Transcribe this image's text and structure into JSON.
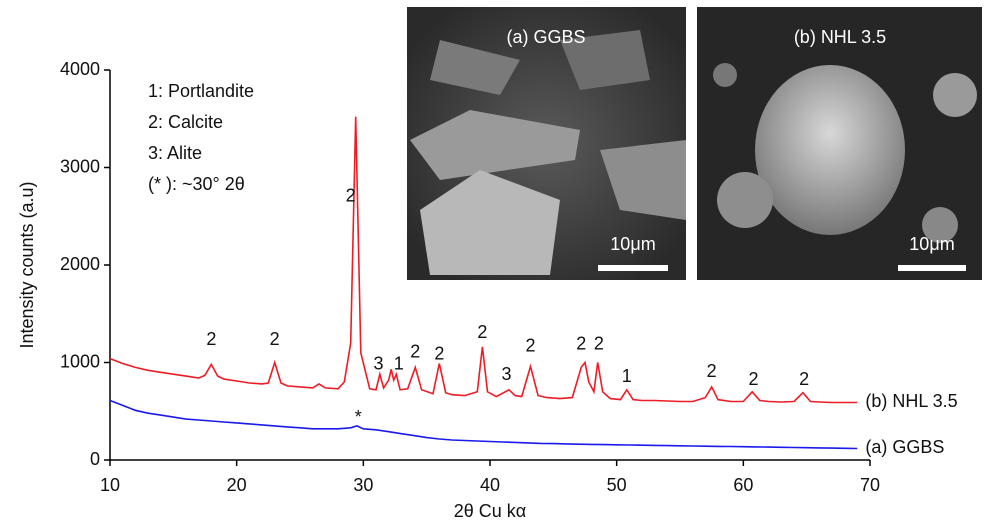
{
  "chart_data": {
    "type": "line",
    "x_label": "2θ Cu kα",
    "y_label": "Intensity counts (a.u)",
    "xlim": [
      10,
      70
    ],
    "xticks": [
      10,
      20,
      30,
      40,
      50,
      60,
      70
    ],
    "ylim": [
      0,
      4000
    ],
    "yticks": [
      0,
      1000,
      2000,
      3000,
      4000
    ],
    "series": [
      {
        "name": "(b) NHL 3.5",
        "color": "#ee1c25",
        "x": [
          10,
          11,
          12,
          13,
          14,
          15,
          16,
          17,
          17.5,
          18,
          18.5,
          19,
          20,
          21,
          22,
          22.5,
          23,
          23.5,
          24,
          25,
          26,
          26.5,
          27,
          28,
          28.5,
          29,
          29.4,
          29.8,
          30.5,
          31,
          31.3,
          31.6,
          32,
          32.2,
          32.4,
          32.6,
          32.9,
          33.5,
          34.1,
          34.6,
          35.5,
          36,
          36.5,
          37,
          38,
          39,
          39.4,
          39.8,
          40.5,
          41.5,
          42,
          42.5,
          43.2,
          43.8,
          44.5,
          45.5,
          46.5,
          47.2,
          47.5,
          47.8,
          48.2,
          48.5,
          48.9,
          49.5,
          50.3,
          50.8,
          51.3,
          52,
          53,
          54,
          55,
          56,
          57,
          57.5,
          58,
          59,
          60,
          60.7,
          61.3,
          62,
          63,
          64,
          64.7,
          65.3,
          66,
          67,
          68,
          69
        ],
        "values": [
          1040,
          990,
          950,
          920,
          900,
          880,
          860,
          840,
          870,
          980,
          860,
          830,
          810,
          790,
          780,
          790,
          1000,
          790,
          760,
          750,
          740,
          780,
          740,
          730,
          800,
          1200,
          3520,
          1100,
          730,
          720,
          880,
          740,
          820,
          930,
          820,
          880,
          720,
          730,
          950,
          720,
          680,
          990,
          690,
          670,
          660,
          700,
          1160,
          700,
          650,
          720,
          660,
          650,
          960,
          660,
          640,
          630,
          640,
          950,
          1000,
          800,
          700,
          1000,
          700,
          630,
          620,
          720,
          620,
          610,
          610,
          605,
          600,
          600,
          640,
          750,
          620,
          600,
          600,
          700,
          610,
          600,
          595,
          600,
          690,
          600,
          595,
          590,
          590,
          590
        ]
      },
      {
        "name": "(a) GGBS",
        "color": "#1a1aee",
        "x": [
          10,
          11,
          12,
          13,
          14,
          15,
          16,
          17,
          18,
          19,
          20,
          21,
          22,
          23,
          24,
          25,
          26,
          27,
          28,
          29,
          29.5,
          30,
          31,
          32,
          33,
          34,
          35,
          36,
          37,
          38,
          39,
          40,
          41,
          42,
          43,
          44,
          45,
          46,
          47,
          48,
          49,
          50,
          51,
          52,
          53,
          54,
          55,
          56,
          57,
          58,
          59,
          60,
          61,
          62,
          63,
          64,
          65,
          66,
          67,
          68,
          69
        ],
        "values": [
          610,
          560,
          510,
          480,
          460,
          440,
          420,
          410,
          400,
          390,
          380,
          370,
          360,
          350,
          340,
          330,
          320,
          320,
          320,
          330,
          350,
          320,
          310,
          290,
          270,
          250,
          230,
          215,
          205,
          200,
          195,
          190,
          185,
          180,
          175,
          170,
          168,
          165,
          162,
          160,
          158,
          156,
          154,
          152,
          150,
          148,
          146,
          144,
          142,
          140,
          138,
          136,
          134,
          132,
          130,
          128,
          126,
          124,
          122,
          120,
          118
        ]
      }
    ],
    "legend_text": [
      "1: Portlandite",
      "2: Calcite",
      "3: Alite",
      "(* ): ~30° 2θ"
    ],
    "annotations": [
      {
        "text": "2",
        "x": 18,
        "y": 1230
      },
      {
        "text": "2",
        "x": 23,
        "y": 1230
      },
      {
        "text": "2",
        "x": 29,
        "y": 2700
      },
      {
        "text": "3",
        "x": 31.2,
        "y": 975
      },
      {
        "text": "1",
        "x": 32.8,
        "y": 975
      },
      {
        "text": "2",
        "x": 34.1,
        "y": 1100
      },
      {
        "text": "2",
        "x": 36,
        "y": 1080
      },
      {
        "text": "2",
        "x": 39.4,
        "y": 1300
      },
      {
        "text": "3",
        "x": 41.3,
        "y": 870
      },
      {
        "text": "2",
        "x": 43.2,
        "y": 1160
      },
      {
        "text": "2",
        "x": 47.2,
        "y": 1180
      },
      {
        "text": "2",
        "x": 48.6,
        "y": 1180
      },
      {
        "text": "1",
        "x": 50.8,
        "y": 850
      },
      {
        "text": "2",
        "x": 57.5,
        "y": 900
      },
      {
        "text": "2",
        "x": 60.8,
        "y": 820
      },
      {
        "text": "2",
        "x": 64.8,
        "y": 820
      },
      {
        "text": "*",
        "x": 29.6,
        "y": 430
      }
    ]
  },
  "insets": [
    {
      "label": "(a) GGBS",
      "scale": "10μm"
    },
    {
      "label": "(b) NHL 3.5",
      "scale": "10μm"
    }
  ]
}
